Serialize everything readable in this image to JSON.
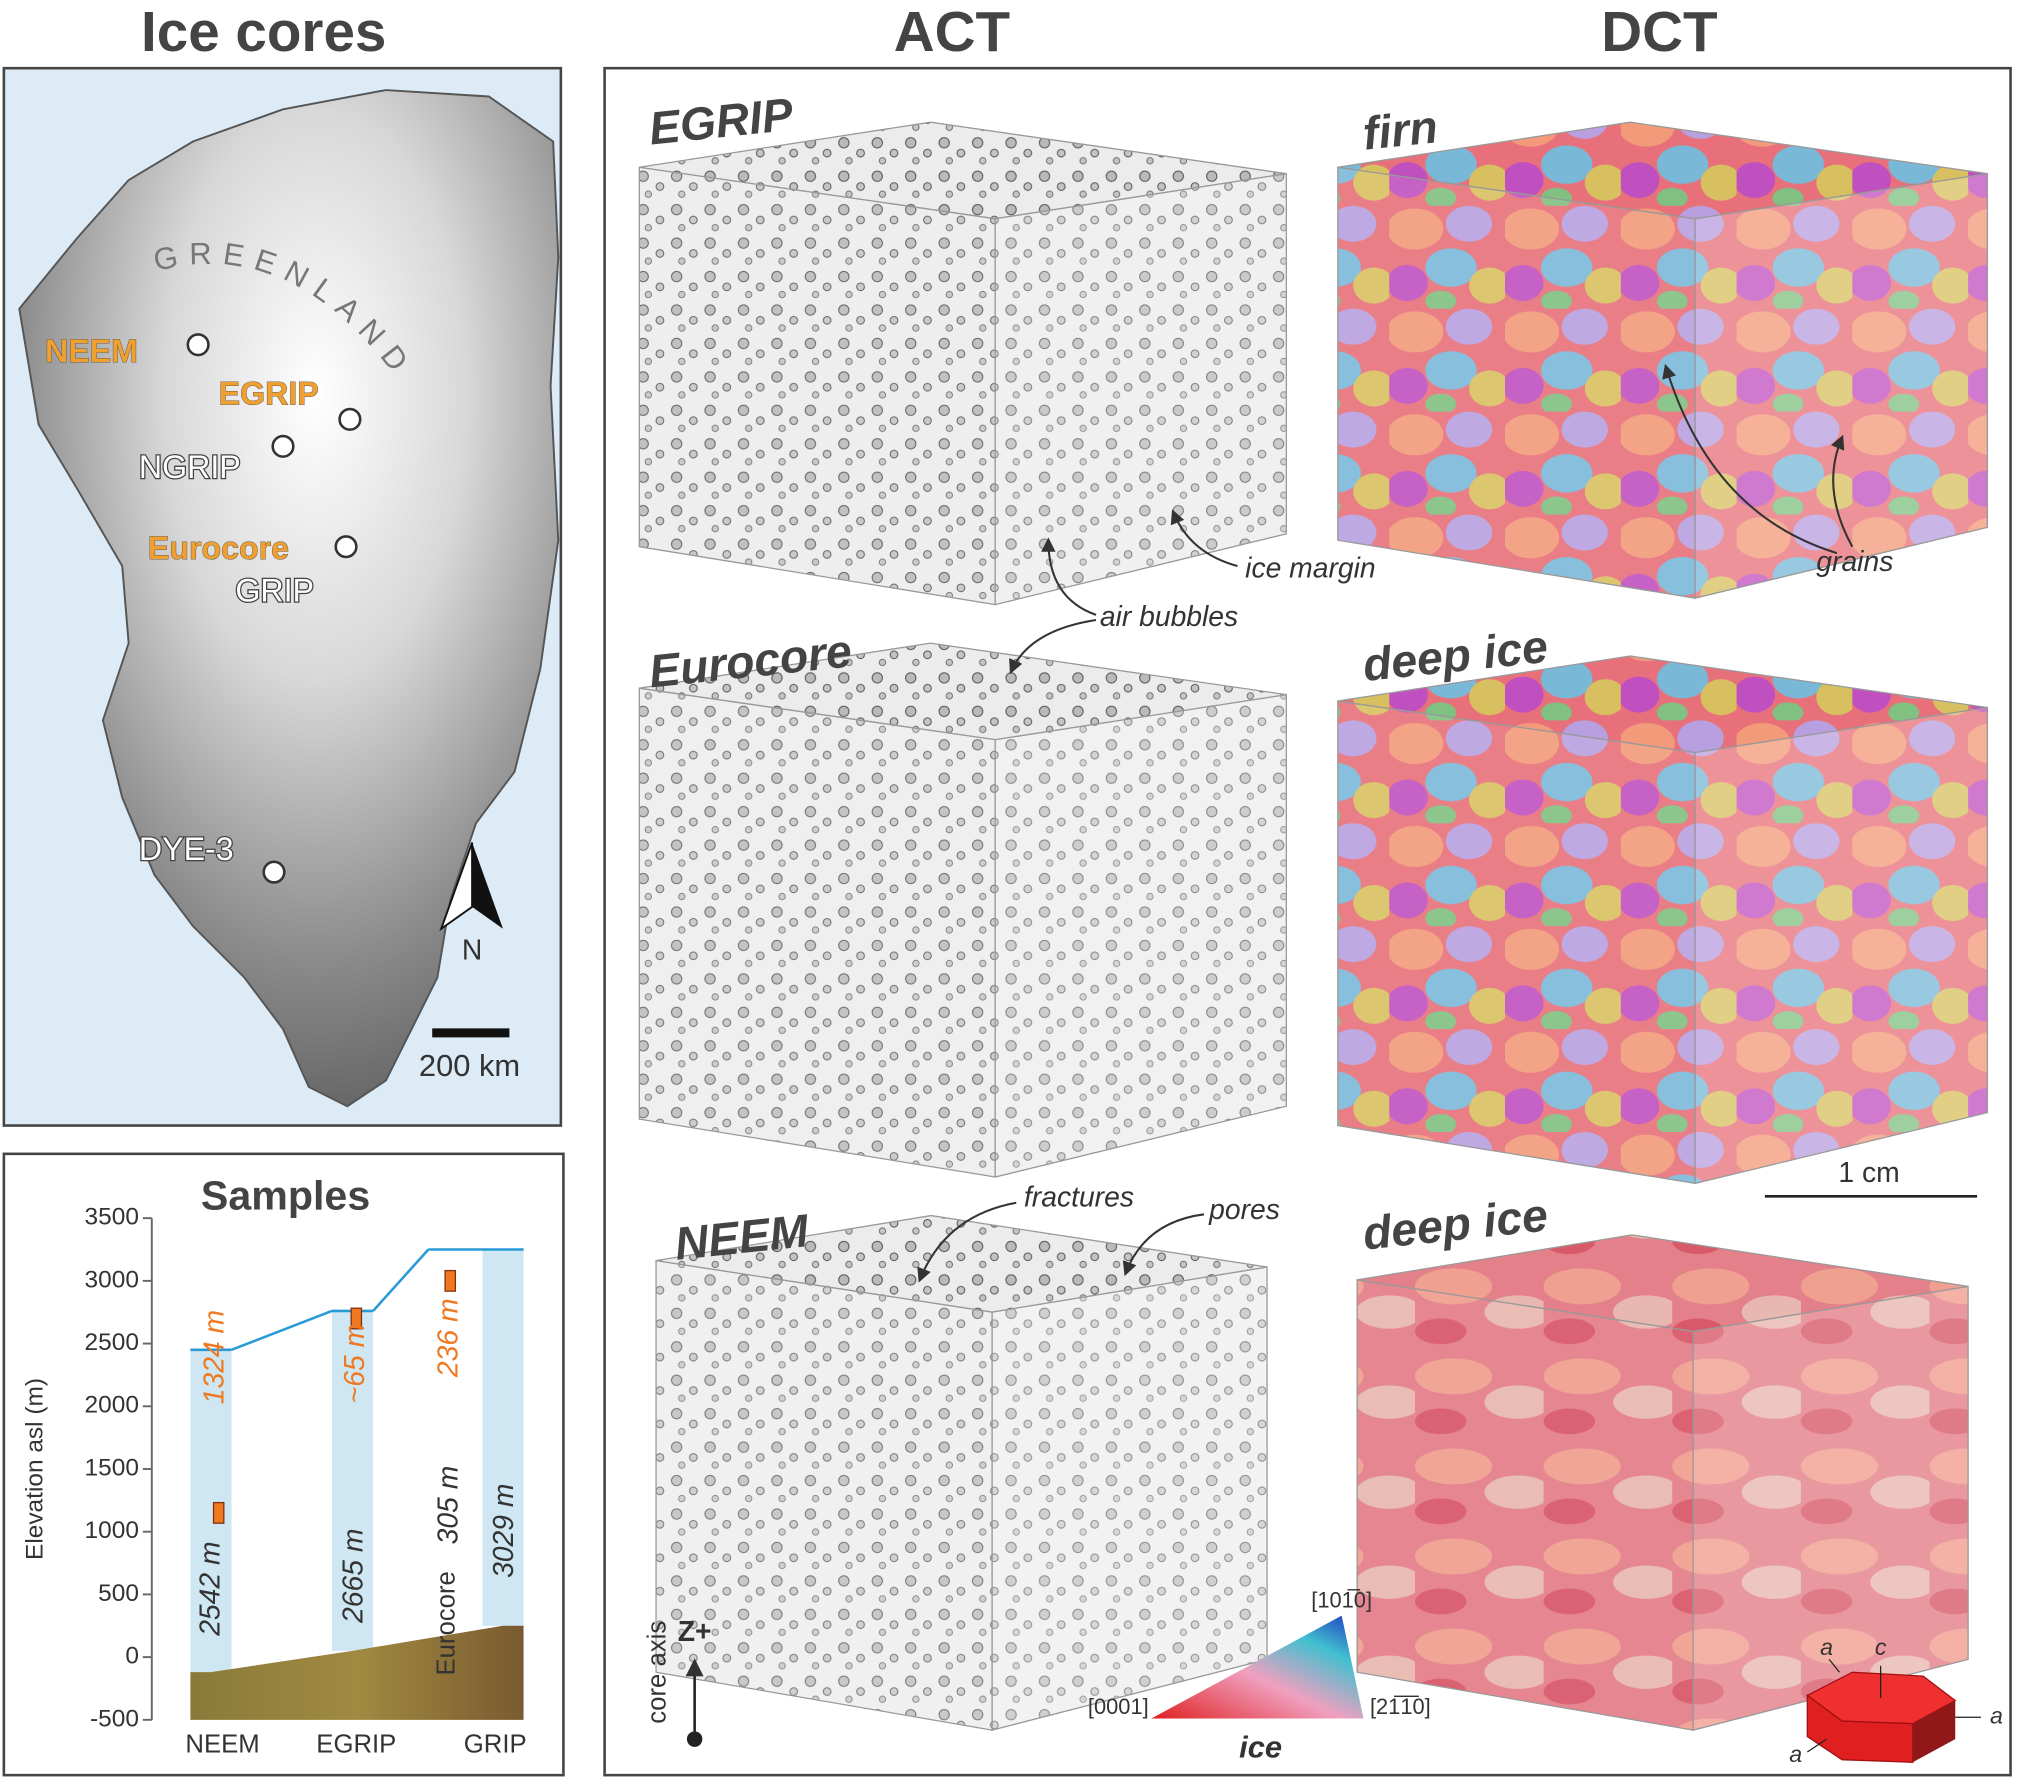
{
  "headers": {
    "left": "Ice cores",
    "act": "ACT",
    "dct": "DCT"
  },
  "map": {
    "region": "GREENLAND",
    "sites": [
      {
        "label": "NEEM",
        "color": "#f0a030"
      },
      {
        "label": "EGRIP",
        "color": "#f0a030"
      },
      {
        "label": "NGRIP",
        "color": "#ffffff"
      },
      {
        "label": "Eurocore",
        "color": "#f0a030"
      },
      {
        "label": "GRIP",
        "color": "#ffffff"
      },
      {
        "label": "DYE-3",
        "color": "#ffffff"
      }
    ],
    "north": "N",
    "scale": "200 km"
  },
  "chart_data": {
    "type": "ice-columns",
    "title": "Samples",
    "ylabel": "Elevation asl (m)",
    "ylim": [
      -500,
      3500
    ],
    "yticks": [
      3500,
      3000,
      2500,
      2000,
      1500,
      1000,
      500,
      0,
      -500
    ],
    "categories": [
      "NEEM",
      "EGRIP",
      "GRIP"
    ],
    "surface": [
      2450,
      2760,
      3250
    ],
    "bed": [
      -120,
      50,
      250
    ],
    "sample_elevations": [
      1150,
      2700,
      3000
    ],
    "thickness_labels": [
      "2542 m",
      "2665 m",
      "3029 m"
    ],
    "sample_labels": [
      "1324 m",
      "~65 m",
      "236 m"
    ],
    "eurocore": {
      "name": "Eurocore",
      "label": "305 m"
    },
    "line_color": "#2a9ad6",
    "column_color": "#cfe6f3",
    "sample_color": "#f07820"
  },
  "act": {
    "labels": [
      "EGRIP",
      "Eurocore",
      "NEEM"
    ],
    "annotations": [
      "ice margin",
      "air bubbles",
      "fractures",
      "pores"
    ]
  },
  "dct": {
    "labels": [
      "firn",
      "deep ice",
      "deep ice"
    ],
    "annotations": [
      "grains"
    ],
    "scale": "1 cm"
  },
  "color_key": {
    "title": "ice",
    "corners": [
      "[0001]",
      "[21̅1̅0]",
      "[101̅0]"
    ]
  },
  "core_axis": {
    "label": "core axis",
    "direction": "Z+"
  },
  "crystal": {
    "labels": [
      "a",
      "c",
      "a",
      "a"
    ]
  }
}
